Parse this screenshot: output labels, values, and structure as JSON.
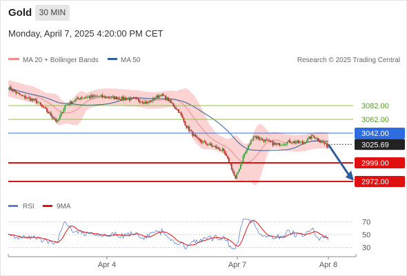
{
  "header": {
    "instrument": "Gold",
    "timeframe": "30 MIN",
    "datetime": "Monday, April 7, 2025 4:20:00 PM CET"
  },
  "legend": {
    "items": [
      {
        "label": "MA 20 + Bollinger Bands",
        "color": "#f08c8c"
      },
      {
        "label": "MA 50",
        "color": "#2d5d9c"
      }
    ],
    "credit": "Research © 2025 Trading Central"
  },
  "rsi_legend": {
    "items": [
      {
        "label": "RSI",
        "color": "#5b7fd6"
      },
      {
        "label": "9MA",
        "color": "#e01010"
      }
    ]
  },
  "chart_data": [
    {
      "type": "candlestick",
      "x_ticks": [
        "Apr 4",
        "Apr 7",
        "Apr 8"
      ],
      "ylim": [
        2960,
        3115
      ],
      "current_price": {
        "label": "3025.69",
        "value": 3025.69
      },
      "levels": [
        {
          "label": "3082.00",
          "value": 3082,
          "kind": "resistance"
        },
        {
          "label": "3062.00",
          "value": 3062,
          "kind": "resistance"
        },
        {
          "label": "3042.00",
          "value": 3042,
          "kind": "pivot"
        },
        {
          "label": "2999.00",
          "value": 2999,
          "kind": "support"
        },
        {
          "label": "2972.00",
          "value": 2972,
          "kind": "support"
        }
      ],
      "colors": {
        "up": "#3a9a3a",
        "down": "#b22a1e",
        "resistance": "#8bc34a",
        "pivot": "#2e6de0",
        "support": "#e01010",
        "band": "#fbd3d3",
        "ma20": "#f08c8c",
        "ma50": "#2d5d9c",
        "arrow": "#2d5d9c"
      }
    },
    {
      "type": "line",
      "name": "RSI",
      "y_ticks": [
        70,
        50,
        30
      ],
      "ylim": [
        20,
        80
      ],
      "series": [
        {
          "name": "RSI"
        },
        {
          "name": "9MA"
        }
      ]
    }
  ]
}
